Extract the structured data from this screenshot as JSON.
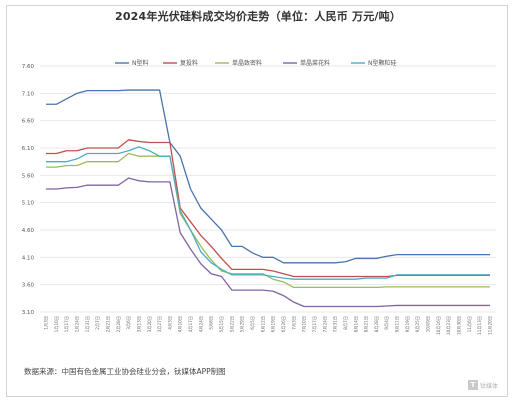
{
  "page": {
    "title": "2024年光伏硅料成交均价走势（单位：人民币 万元/吨）",
    "source": "数据来源：中国有色金属工业协会硅业分会，钛媒体APP制图",
    "watermark": "钛媒体"
  },
  "chart_data": {
    "type": "line",
    "title": "2024年光伏硅料成交均价走势（单位：人民币 万元/吨）",
    "xlabel": "",
    "ylabel": "",
    "ylim": [
      3.1,
      7.6
    ],
    "yticks": [
      "7.60",
      "7.10",
      "6.60",
      "6.10",
      "5.60",
      "5.10",
      "4.60",
      "4.10",
      "3.60",
      "3.10"
    ],
    "grid": true,
    "legend_position": "top",
    "categories": [
      "1月3日",
      "1月10日",
      "1月17日",
      "1月24日",
      "1月31日",
      "2月7日",
      "2月21日",
      "2月28日",
      "3月6日",
      "3月13日",
      "3月20日",
      "3月27日",
      "4月3日",
      "4月10日",
      "4月17日",
      "4月24日",
      "5月8日",
      "5月15日",
      "5月22日",
      "5月29日",
      "6月5日",
      "6月12日",
      "6月19日",
      "6月26日",
      "7月3日",
      "7月10日",
      "7月17日",
      "7月24日",
      "7月31日",
      "8月7日",
      "8月14日",
      "8月21日",
      "8月28日",
      "9月4日",
      "9月11日",
      "9月19日",
      "9月25日",
      "10月9日",
      "10月16日",
      "10月23日",
      "10月30日",
      "11月6日",
      "11月13日",
      "11月20日"
    ],
    "series": [
      {
        "name": "N型料",
        "color": "#4a74ad",
        "values": [
          6.9,
          6.9,
          7.0,
          7.1,
          7.15,
          7.15,
          7.15,
          7.15,
          7.16,
          7.16,
          7.16,
          7.16,
          6.2,
          5.95,
          5.35,
          5.0,
          4.8,
          4.6,
          4.3,
          4.3,
          4.18,
          4.1,
          4.1,
          4.0,
          4.0,
          4.0,
          4.0,
          4.0,
          4.0,
          4.02,
          4.08,
          4.08,
          4.08,
          4.12,
          4.15,
          4.15,
          4.15,
          4.15,
          4.15,
          4.15,
          4.15,
          4.15,
          4.15,
          4.15
        ]
      },
      {
        "name": "复投料",
        "color": "#c0504d",
        "values": [
          6.0,
          6.0,
          6.05,
          6.05,
          6.1,
          6.1,
          6.1,
          6.1,
          6.25,
          6.22,
          6.2,
          6.2,
          6.2,
          5.0,
          4.75,
          4.5,
          4.3,
          4.08,
          3.88,
          3.88,
          3.88,
          3.88,
          3.85,
          3.8,
          3.75,
          3.75,
          3.75,
          3.75,
          3.75,
          3.75,
          3.75,
          3.75,
          3.75,
          3.75,
          3.77,
          3.77,
          3.77,
          3.77,
          3.77,
          3.77,
          3.77,
          3.77,
          3.77,
          3.77
        ]
      },
      {
        "name": "单晶致密料",
        "color": "#9bbb59",
        "values": [
          5.75,
          5.75,
          5.78,
          5.78,
          5.85,
          5.85,
          5.85,
          5.85,
          6.0,
          5.95,
          5.95,
          5.95,
          5.95,
          4.9,
          4.6,
          4.3,
          4.05,
          3.85,
          3.8,
          3.8,
          3.8,
          3.8,
          3.7,
          3.65,
          3.55,
          3.55,
          3.55,
          3.55,
          3.55,
          3.55,
          3.55,
          3.55,
          3.55,
          3.56,
          3.56,
          3.56,
          3.56,
          3.56,
          3.56,
          3.56,
          3.56,
          3.56,
          3.56,
          3.56
        ]
      },
      {
        "name": "单晶菜花料",
        "color": "#8064a2",
        "values": [
          5.35,
          5.35,
          5.37,
          5.38,
          5.42,
          5.42,
          5.42,
          5.42,
          5.55,
          5.5,
          5.48,
          5.48,
          5.48,
          4.55,
          4.25,
          3.98,
          3.8,
          3.75,
          3.5,
          3.5,
          3.5,
          3.5,
          3.48,
          3.4,
          3.28,
          3.2,
          3.2,
          3.2,
          3.2,
          3.2,
          3.2,
          3.2,
          3.2,
          3.21,
          3.22,
          3.22,
          3.22,
          3.22,
          3.22,
          3.22,
          3.22,
          3.22,
          3.22,
          3.22
        ]
      },
      {
        "name": "N型颗粒硅",
        "color": "#4bacc6",
        "values": [
          5.85,
          5.85,
          5.85,
          5.9,
          6.0,
          6.0,
          6.0,
          6.0,
          6.05,
          6.12,
          6.05,
          5.95,
          5.95,
          4.95,
          4.6,
          4.2,
          4.0,
          3.88,
          3.78,
          3.78,
          3.78,
          3.78,
          3.75,
          3.72,
          3.7,
          3.7,
          3.7,
          3.7,
          3.7,
          3.7,
          3.7,
          3.72,
          3.72,
          3.72,
          3.78,
          3.78,
          3.78,
          3.78,
          3.78,
          3.78,
          3.78,
          3.78,
          3.78,
          3.78
        ]
      }
    ]
  }
}
